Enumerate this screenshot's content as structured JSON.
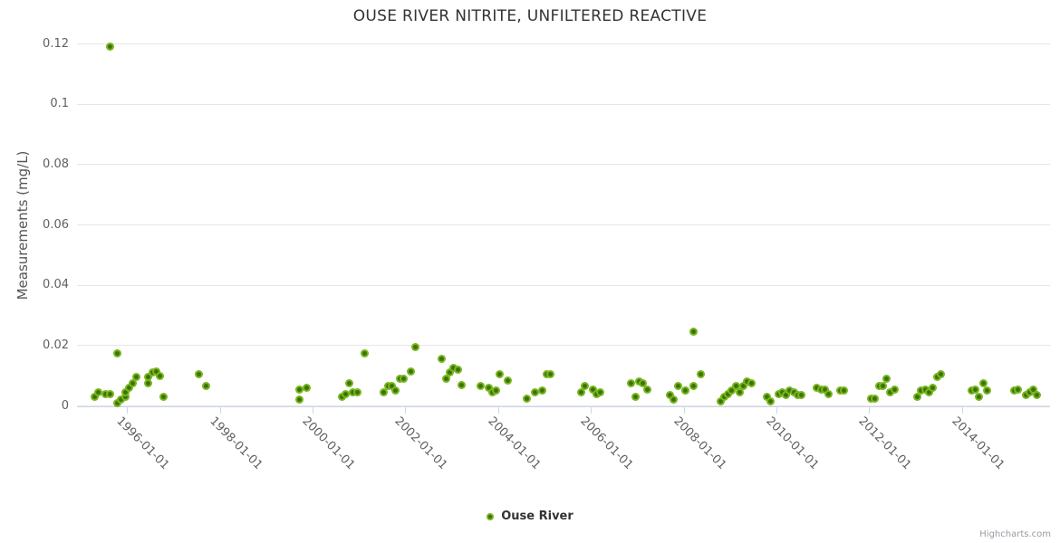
{
  "credit": "Highcharts.com",
  "colors": {
    "marker_ring": "#77b51e",
    "marker_core": "#3b7204",
    "grid": "#e6e6e6",
    "axis_line": "#ccd6eb",
    "title_text": "#333333",
    "tick_text": "#606060",
    "credit_text": "#999aa3"
  },
  "chart_data": {
    "type": "scatter",
    "title": "OUSE RIVER NITRITE, UNFILTERED REACTIVE",
    "xlabel": "",
    "ylabel": "Measurements (mg/L)",
    "ylim": [
      0,
      0.12
    ],
    "xlim": [
      "1994-12",
      "2015-11"
    ],
    "grid": "horizontal-only",
    "legend_position": "bottom-center",
    "y_ticks": [
      0,
      0.02,
      0.04,
      0.06,
      0.08,
      0.1,
      0.12
    ],
    "y_tick_labels": [
      "0",
      "0.02",
      "0.04",
      "0.06",
      "0.08",
      "0.1",
      "0.12"
    ],
    "x_ticks": [
      "1996-01-01",
      "1998-01-01",
      "2000-01-01",
      "2002-01-01",
      "2004-01-01",
      "2006-01-01",
      "2008-01-01",
      "2010-01-01",
      "2012-01-01",
      "2014-01-01"
    ],
    "series": [
      {
        "name": "Ouse River",
        "points": [
          [
            "1995-04",
            0.003
          ],
          [
            "1995-05",
            0.0045
          ],
          [
            "1995-07",
            0.004
          ],
          [
            "1995-08",
            0.004
          ],
          [
            "1995-08",
            0.119
          ],
          [
            "1995-10",
            0.0175
          ],
          [
            "1995-10",
            0.001
          ],
          [
            "1995-11",
            0.002
          ],
          [
            "1995-12",
            0.003
          ],
          [
            "1995-12",
            0.0045
          ],
          [
            "1996-01",
            0.006
          ],
          [
            "1996-02",
            0.0075
          ],
          [
            "1996-03",
            0.0095
          ],
          [
            "1996-06",
            0.0075
          ],
          [
            "1996-06",
            0.0095
          ],
          [
            "1996-07",
            0.011
          ],
          [
            "1996-08",
            0.0115
          ],
          [
            "1996-09",
            0.01
          ],
          [
            "1996-10",
            0.003
          ],
          [
            "1997-07",
            0.0105
          ],
          [
            "1997-09",
            0.0065
          ],
          [
            "1999-09",
            0.002
          ],
          [
            "1999-09",
            0.0055
          ],
          [
            "1999-11",
            0.006
          ],
          [
            "2000-08",
            0.003
          ],
          [
            "2000-09",
            0.004
          ],
          [
            "2000-10",
            0.0075
          ],
          [
            "2000-11",
            0.0045
          ],
          [
            "2000-12",
            0.0045
          ],
          [
            "2001-02",
            0.0175
          ],
          [
            "2001-07",
            0.0045
          ],
          [
            "2001-08",
            0.0065
          ],
          [
            "2001-09",
            0.0065
          ],
          [
            "2001-10",
            0.005
          ],
          [
            "2001-11",
            0.009
          ],
          [
            "2001-12",
            0.009
          ],
          [
            "2002-02",
            0.0115
          ],
          [
            "2002-03",
            0.0195
          ],
          [
            "2002-10",
            0.0155
          ],
          [
            "2002-11",
            0.009
          ],
          [
            "2002-12",
            0.011
          ],
          [
            "2003-01",
            0.0125
          ],
          [
            "2003-02",
            0.012
          ],
          [
            "2003-03",
            0.007
          ],
          [
            "2003-08",
            0.0065
          ],
          [
            "2003-10",
            0.006
          ],
          [
            "2003-11",
            0.0045
          ],
          [
            "2003-12",
            0.005
          ],
          [
            "2004-01",
            0.0105
          ],
          [
            "2004-03",
            0.0085
          ],
          [
            "2004-08",
            0.0025
          ],
          [
            "2004-10",
            0.0045
          ],
          [
            "2004-12",
            0.005
          ],
          [
            "2005-01",
            0.0105
          ],
          [
            "2005-02",
            0.0105
          ],
          [
            "2005-10",
            0.0045
          ],
          [
            "2005-11",
            0.0065
          ],
          [
            "2006-01",
            0.0055
          ],
          [
            "2006-02",
            0.004
          ],
          [
            "2006-03",
            0.0045
          ],
          [
            "2006-11",
            0.0075
          ],
          [
            "2006-12",
            0.003
          ],
          [
            "2007-01",
            0.008
          ],
          [
            "2007-02",
            0.0075
          ],
          [
            "2007-03",
            0.0055
          ],
          [
            "2007-09",
            0.0035
          ],
          [
            "2007-10",
            0.002
          ],
          [
            "2007-11",
            0.0065
          ],
          [
            "2008-01",
            0.005
          ],
          [
            "2008-01",
            0.005
          ],
          [
            "2008-03",
            0.0065
          ],
          [
            "2008-03",
            0.0245
          ],
          [
            "2008-05",
            0.0105
          ],
          [
            "2008-10",
            0.0015
          ],
          [
            "2008-11",
            0.003
          ],
          [
            "2008-12",
            0.004
          ],
          [
            "2009-01",
            0.005
          ],
          [
            "2009-02",
            0.0065
          ],
          [
            "2009-03",
            0.0045
          ],
          [
            "2009-04",
            0.0065
          ],
          [
            "2009-05",
            0.008
          ],
          [
            "2009-06",
            0.0075
          ],
          [
            "2009-10",
            0.003
          ],
          [
            "2009-11",
            0.0015
          ],
          [
            "2010-01",
            0.004
          ],
          [
            "2010-02",
            0.0045
          ],
          [
            "2010-03",
            0.0035
          ],
          [
            "2010-04",
            0.005
          ],
          [
            "2010-05",
            0.0045
          ],
          [
            "2010-06",
            0.0035
          ],
          [
            "2010-07",
            0.0035
          ],
          [
            "2010-11",
            0.006
          ],
          [
            "2010-12",
            0.0055
          ],
          [
            "2011-01",
            0.0055
          ],
          [
            "2011-02",
            0.004
          ],
          [
            "2011-05",
            0.005
          ],
          [
            "2011-06",
            0.005
          ],
          [
            "2012-01",
            0.0025
          ],
          [
            "2012-02",
            0.0025
          ],
          [
            "2012-03",
            0.0065
          ],
          [
            "2012-04",
            0.0065
          ],
          [
            "2012-05",
            0.009
          ],
          [
            "2012-06",
            0.0045
          ],
          [
            "2012-07",
            0.0055
          ],
          [
            "2013-01",
            0.003
          ],
          [
            "2013-02",
            0.005
          ],
          [
            "2013-03",
            0.0055
          ],
          [
            "2013-04",
            0.0045
          ],
          [
            "2013-05",
            0.006
          ],
          [
            "2013-06",
            0.0095
          ],
          [
            "2013-07",
            0.0105
          ],
          [
            "2014-03",
            0.005
          ],
          [
            "2014-04",
            0.0055
          ],
          [
            "2014-05",
            0.003
          ],
          [
            "2014-06",
            0.0075
          ],
          [
            "2014-07",
            0.005
          ],
          [
            "2015-02",
            0.005
          ],
          [
            "2015-03",
            0.0055
          ],
          [
            "2015-05",
            0.0035
          ],
          [
            "2015-06",
            0.0045
          ],
          [
            "2015-07",
            0.0055
          ],
          [
            "2015-08",
            0.0035
          ]
        ]
      }
    ]
  }
}
